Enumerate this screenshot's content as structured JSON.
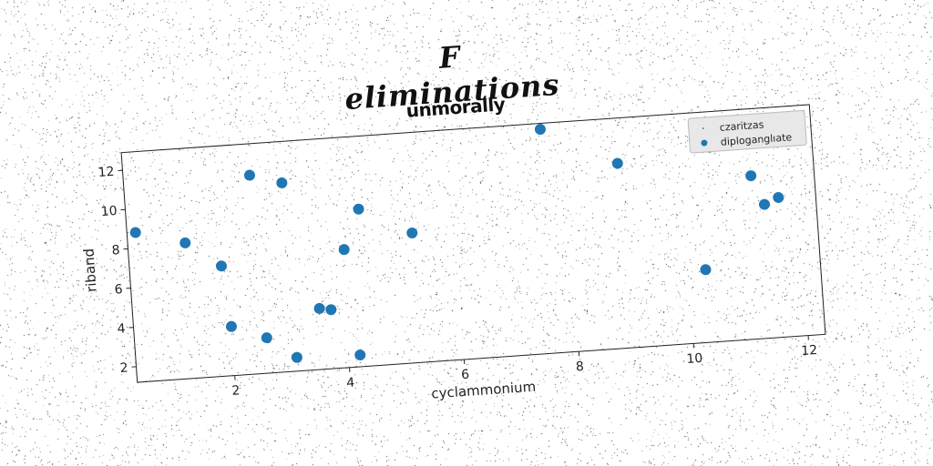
{
  "suptitle": "F eliminations",
  "chart_data": {
    "type": "scatter",
    "title": "unmorally",
    "xlabel": "cyclammonium",
    "ylabel": "riband",
    "xlim": [
      0.3,
      12.3
    ],
    "ylim": [
      1.2,
      12.9
    ],
    "xticks": [
      2,
      4,
      6,
      8,
      10,
      12
    ],
    "yticks": [
      2,
      4,
      6,
      8,
      10,
      12
    ],
    "grid": false,
    "legend_position": "top-right",
    "series": [
      {
        "name": "czaritzas",
        "color": "#444444",
        "points": []
      },
      {
        "name": "diploganglıate",
        "color": "#1f77b4",
        "points": [
          [
            0.45,
            8.8
          ],
          [
            1.3,
            8.1
          ],
          [
            1.9,
            6.8
          ],
          [
            2.0,
            3.7
          ],
          [
            2.5,
            11.3
          ],
          [
            2.6,
            3.0
          ],
          [
            3.05,
            10.8
          ],
          [
            3.1,
            1.9
          ],
          [
            3.55,
            4.3
          ],
          [
            3.75,
            4.2
          ],
          [
            4.05,
            7.2
          ],
          [
            4.2,
            1.8
          ],
          [
            4.35,
            9.2
          ],
          [
            5.25,
            7.8
          ],
          [
            7.6,
            12.6
          ],
          [
            8.9,
            10.6
          ],
          [
            10.3,
            4.9
          ],
          [
            10.5,
            11.1
          ],
          [
            11.2,
            9.5
          ],
          [
            11.4,
            8.0
          ],
          [
            11.65,
            8.3
          ]
        ]
      }
    ]
  }
}
